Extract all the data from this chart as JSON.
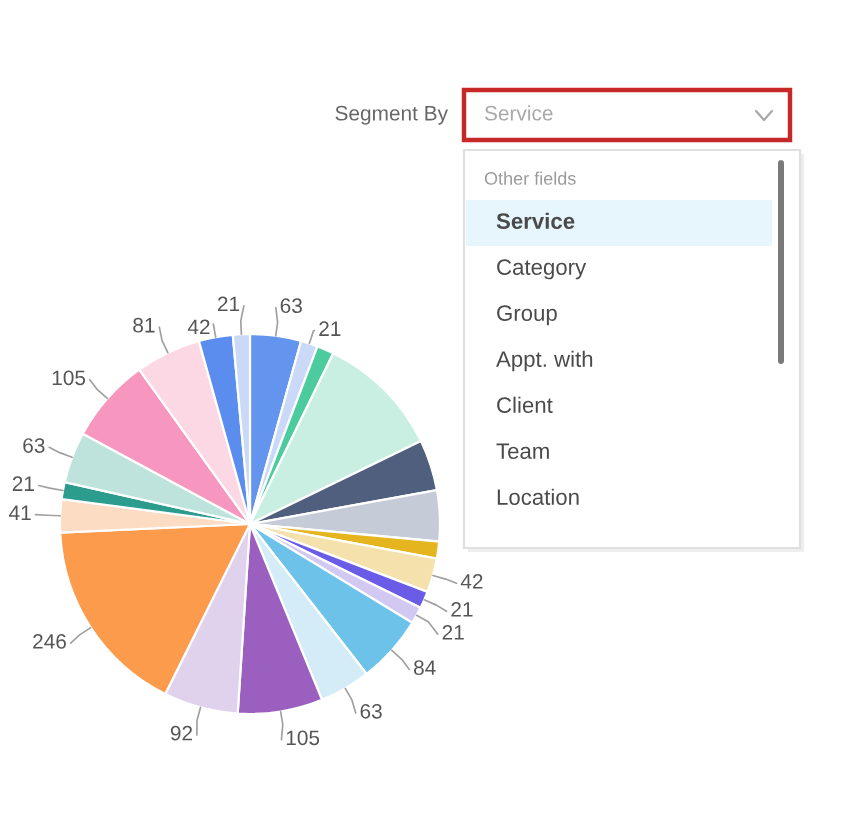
{
  "chart_data": {
    "type": "pie",
    "categories": [
      null,
      null,
      null,
      null,
      null,
      null,
      null,
      null,
      null,
      null,
      null,
      null,
      null,
      null,
      null,
      null,
      null,
      null,
      null,
      null,
      null,
      null
    ],
    "values": [
      63,
      21,
      21,
      154,
      63,
      63,
      21,
      42,
      21,
      21,
      84,
      63,
      105,
      92,
      246,
      41,
      21,
      63,
      105,
      81,
      42,
      21
    ],
    "colors": [
      "#6395ee",
      "#c9d9f7",
      "#4ccb9e",
      "#c8efe1",
      "#505f7e",
      "#c6cbd8",
      "#e5b520",
      "#f4e1ac",
      "#6b5ce7",
      "#d2c9f2",
      "#6cc2e8",
      "#d4ebf8",
      "#9a5fbf",
      "#e0d1ec",
      "#fd9b4c",
      "#fcdcc2",
      "#2b9c8e",
      "#bee3dc",
      "#f796be",
      "#fcd8e5",
      "#5a8ded",
      "#c9d9f7"
    ],
    "value_labels": [
      "63",
      "21",
      null,
      null,
      null,
      null,
      null,
      "42",
      "21",
      "21",
      "84",
      "63",
      "105",
      "92",
      "246",
      "41",
      "21",
      "63",
      "105",
      "81",
      "42",
      "21"
    ],
    "annotations": [
      "Segment By",
      "Service",
      "Other fields",
      "Service",
      "Category",
      "Group",
      "Appt. with",
      "Client",
      "Team",
      "Location"
    ]
  }
}
